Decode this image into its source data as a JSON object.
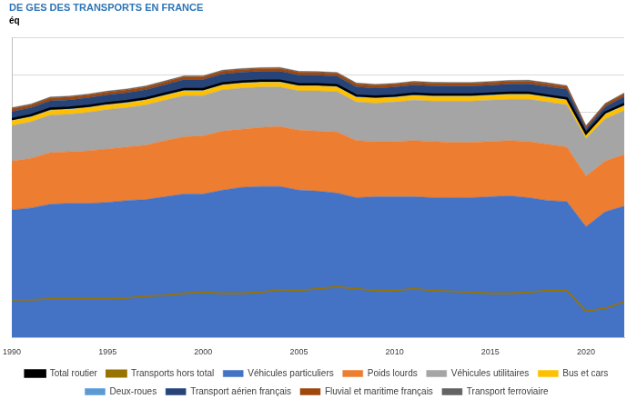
{
  "chart_data": {
    "type": "area",
    "title": "DE GES DES TRANSPORTS EN FRANCE",
    "subtitle": "éq",
    "stacked": true,
    "grid": true,
    "legend": "bottom",
    "tick_labels": "x",
    "x": [
      1990,
      1991,
      1992,
      1993,
      1994,
      1995,
      1996,
      1997,
      1998,
      1999,
      2000,
      2001,
      2002,
      2003,
      2004,
      2005,
      2006,
      2007,
      2008,
      2009,
      2010,
      2011,
      2012,
      2013,
      2014,
      2015,
      2016,
      2017,
      2018,
      2019,
      2020,
      2021,
      2022
    ],
    "xlim": [
      1990,
      2022
    ],
    "xticks": [
      1990,
      1995,
      2000,
      2005,
      2010,
      2015,
      2020
    ],
    "ylim": [
      0,
      160
    ],
    "yticks": [
      0,
      20,
      40,
      60,
      80,
      100,
      120,
      140,
      160
    ],
    "series": [
      {
        "name": "Véhicules particuliers",
        "color": "#4472c4",
        "values": [
          68,
          69,
          71,
          71.5,
          71.5,
          72,
          73,
          73.5,
          75,
          76.5,
          76.5,
          78.5,
          80,
          80.5,
          80.5,
          78.5,
          78,
          77,
          74.5,
          75,
          75,
          75,
          74.5,
          74.5,
          74.5,
          75,
          75.5,
          74.5,
          73,
          72.5,
          59,
          67,
          70
        ]
      },
      {
        "name": "Poids lourds",
        "color": "#ed7d31",
        "values": [
          26,
          26.5,
          27.5,
          27.5,
          28,
          28.5,
          28.5,
          29,
          30,
          30.5,
          31,
          31.5,
          31,
          31.5,
          32,
          32,
          32,
          32.5,
          30.5,
          29.5,
          29.5,
          30,
          30,
          29.5,
          29.5,
          29.5,
          29.5,
          30,
          30,
          29,
          27,
          27,
          27.5
        ]
      },
      {
        "name": "Véhicules utilitaires",
        "color": "#a5a5a5",
        "values": [
          19,
          19.5,
          20,
          20,
          20.5,
          21,
          21,
          21.5,
          21.5,
          22,
          21.5,
          22,
          22,
          21.5,
          21,
          21,
          21.5,
          21.5,
          20.5,
          20.5,
          21,
          21.5,
          21.5,
          22,
          22,
          22,
          22,
          22.5,
          22.5,
          22.5,
          20,
          22.5,
          23.5
        ]
      },
      {
        "name": "Bus et cars",
        "color": "#ffc000",
        "values": [
          2.5,
          2.5,
          2.5,
          2.5,
          2.5,
          2.5,
          2.5,
          2.5,
          2.5,
          2.5,
          2.5,
          2.5,
          2.5,
          2.5,
          2.5,
          2.5,
          2.5,
          2.5,
          2.5,
          2.5,
          2.5,
          2.5,
          2.5,
          2.5,
          2.5,
          2.5,
          2.5,
          2.5,
          2.5,
          2.5,
          2,
          2.5,
          2.5
        ]
      },
      {
        "name": "Deux-roues",
        "color": "#5b9bd5",
        "values": [
          1,
          1,
          1,
          1,
          1,
          1,
          1,
          1,
          1,
          1,
          1,
          1,
          1,
          1,
          1,
          1,
          1,
          1,
          1,
          1,
          1,
          1,
          1,
          1,
          1,
          1,
          1,
          1,
          1,
          1,
          0.8,
          1,
          1
        ]
      },
      {
        "name": "Transport aérien français",
        "color": "#264478",
        "values": [
          4,
          4,
          4.2,
          4.2,
          4.3,
          4.4,
          4.5,
          4.6,
          4.8,
          5,
          5,
          5,
          4.9,
          4.9,
          5,
          4.9,
          4.8,
          4.8,
          4.7,
          4.5,
          4.5,
          4.6,
          4.6,
          4.5,
          4.5,
          4.5,
          4.6,
          4.7,
          4.8,
          4.8,
          2.5,
          3,
          4
        ]
      },
      {
        "name": "Fluvial et maritime français",
        "color": "#9e480e",
        "values": [
          1.5,
          1.5,
          1.5,
          1.5,
          1.5,
          1.5,
          1.5,
          1.5,
          1.5,
          1.5,
          1.5,
          1.5,
          1.5,
          1.5,
          1.5,
          1.5,
          1.5,
          1.5,
          1.5,
          1.5,
          1.5,
          1.5,
          1.5,
          1.5,
          1.5,
          1.5,
          1.5,
          1.5,
          1.5,
          1.5,
          1.2,
          1.4,
          1.5
        ]
      },
      {
        "name": "Transport ferroviaire",
        "color": "#636363",
        "values": [
          0.5,
          0.5,
          0.5,
          0.5,
          0.5,
          0.5,
          0.5,
          0.5,
          0.5,
          0.5,
          0.5,
          0.5,
          0.5,
          0.5,
          0.5,
          0.5,
          0.5,
          0.5,
          0.5,
          0.5,
          0.5,
          0.5,
          0.5,
          0.5,
          0.5,
          0.5,
          0.5,
          0.5,
          0.5,
          0.5,
          0.4,
          0.4,
          0.4
        ]
      },
      {
        "name": "Total routier",
        "color": "#000000",
        "type": "line",
        "stacked": false,
        "values": [
          116.5,
          118.5,
          122,
          122.5,
          123.5,
          125,
          126,
          127.5,
          130,
          132.5,
          132.5,
          135.5,
          136.5,
          137,
          137,
          135,
          135,
          134.5,
          129,
          128.5,
          129,
          130,
          129.5,
          129.5,
          129.5,
          130,
          130.5,
          130.5,
          129,
          127.5,
          108.8,
          120,
          124.5
        ]
      },
      {
        "name": "Transports hors total",
        "color": "#997300",
        "type": "line",
        "stacked": false,
        "values": [
          20,
          20,
          20.5,
          20.5,
          20.5,
          20.5,
          21,
          22,
          22.5,
          23.5,
          24,
          23.5,
          23.5,
          24,
          25.5,
          25,
          26,
          27,
          26,
          25,
          25,
          26,
          25,
          24.5,
          24,
          23.5,
          23.5,
          24,
          25,
          25,
          14,
          15.5,
          19
        ]
      }
    ]
  }
}
